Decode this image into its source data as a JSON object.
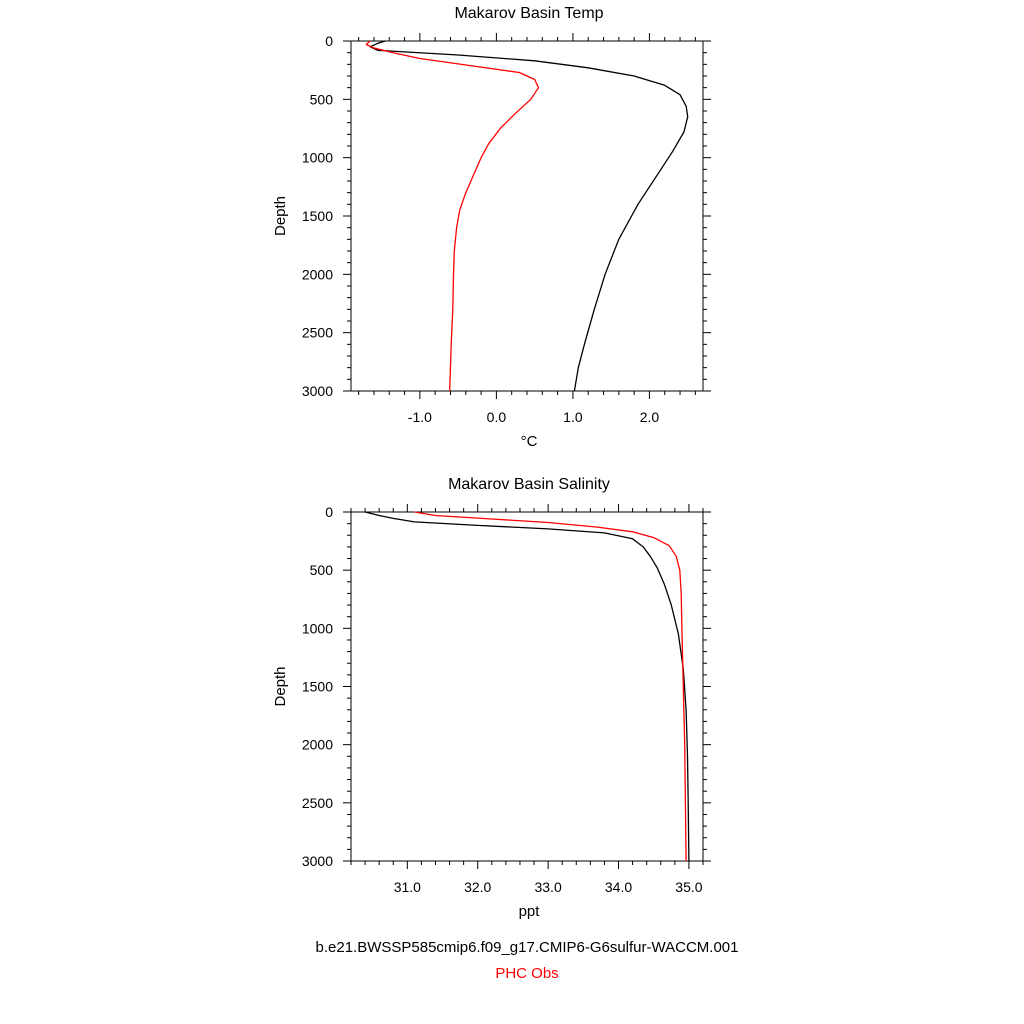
{
  "chart_data": [
    {
      "type": "line",
      "title": "Makarov Basin Temp",
      "xlabel": "°C",
      "ylabel": "Depth",
      "xlim": [
        -1.9,
        2.7
      ],
      "ylim": [
        3000,
        0
      ],
      "x_ticks": [
        -1.0,
        0.0,
        1.0,
        2.0
      ],
      "x_tick_labels": [
        "-1.0",
        "0.0",
        "1.0",
        "2.0"
      ],
      "y_ticks": [
        0,
        500,
        1000,
        1500,
        2000,
        2500,
        3000
      ],
      "y_tick_labels": [
        "0",
        "500",
        "1000",
        "1500",
        "2000",
        "2500",
        "3000"
      ],
      "grid": false,
      "series": [
        {
          "color": "#000000",
          "points": [
            [
              -1.45,
              0
            ],
            [
              -1.55,
              20
            ],
            [
              -1.65,
              50
            ],
            [
              -1.55,
              80
            ],
            [
              -0.5,
              120
            ],
            [
              0.5,
              170
            ],
            [
              1.2,
              230
            ],
            [
              1.8,
              300
            ],
            [
              2.2,
              380
            ],
            [
              2.4,
              460
            ],
            [
              2.48,
              560
            ],
            [
              2.5,
              650
            ],
            [
              2.45,
              780
            ],
            [
              2.3,
              950
            ],
            [
              2.1,
              1150
            ],
            [
              1.85,
              1400
            ],
            [
              1.6,
              1700
            ],
            [
              1.42,
              2000
            ],
            [
              1.28,
              2300
            ],
            [
              1.15,
              2600
            ],
            [
              1.07,
              2800
            ],
            [
              1.02,
              3000
            ]
          ]
        },
        {
          "color": "#ff0000",
          "points": [
            [
              -1.65,
              0
            ],
            [
              -1.7,
              30
            ],
            [
              -1.6,
              60
            ],
            [
              -1.35,
              100
            ],
            [
              -1.0,
              150
            ],
            [
              -0.35,
              210
            ],
            [
              0.3,
              270
            ],
            [
              0.5,
              330
            ],
            [
              0.55,
              400
            ],
            [
              0.45,
              500
            ],
            [
              0.25,
              620
            ],
            [
              0.05,
              750
            ],
            [
              -0.1,
              880
            ],
            [
              -0.2,
              1000
            ],
            [
              -0.3,
              1150
            ],
            [
              -0.4,
              1300
            ],
            [
              -0.48,
              1450
            ],
            [
              -0.52,
              1600
            ],
            [
              -0.55,
              1800
            ],
            [
              -0.56,
              2000
            ],
            [
              -0.57,
              2300
            ],
            [
              -0.59,
              2600
            ],
            [
              -0.61,
              3000
            ]
          ]
        }
      ]
    },
    {
      "type": "line",
      "title": "Makarov Basin Salinity",
      "xlabel": "ppt",
      "ylabel": "Depth",
      "xlim": [
        30.2,
        35.2
      ],
      "ylim": [
        3000,
        0
      ],
      "x_ticks": [
        31.0,
        32.0,
        33.0,
        34.0,
        35.0
      ],
      "x_tick_labels": [
        "31.0",
        "32.0",
        "33.0",
        "34.0",
        "35.0"
      ],
      "y_ticks": [
        0,
        500,
        1000,
        1500,
        2000,
        2500,
        3000
      ],
      "y_tick_labels": [
        "0",
        "500",
        "1000",
        "1500",
        "2000",
        "2500",
        "3000"
      ],
      "grid": false,
      "series": [
        {
          "color": "#000000",
          "points": [
            [
              30.4,
              0
            ],
            [
              30.6,
              30
            ],
            [
              30.8,
              55
            ],
            [
              31.1,
              85
            ],
            [
              32.0,
              115
            ],
            [
              33.0,
              145
            ],
            [
              33.8,
              180
            ],
            [
              34.2,
              230
            ],
            [
              34.35,
              300
            ],
            [
              34.45,
              380
            ],
            [
              34.55,
              480
            ],
            [
              34.65,
              620
            ],
            [
              34.75,
              800
            ],
            [
              34.85,
              1050
            ],
            [
              34.92,
              1350
            ],
            [
              34.96,
              1700
            ],
            [
              34.98,
              2100
            ],
            [
              34.99,
              2500
            ],
            [
              35.0,
              3000
            ]
          ]
        },
        {
          "color": "#ff0000",
          "points": [
            [
              31.1,
              0
            ],
            [
              31.4,
              30
            ],
            [
              32.2,
              60
            ],
            [
              33.0,
              90
            ],
            [
              33.7,
              130
            ],
            [
              34.2,
              170
            ],
            [
              34.5,
              220
            ],
            [
              34.72,
              290
            ],
            [
              34.82,
              380
            ],
            [
              34.87,
              500
            ],
            [
              34.89,
              700
            ],
            [
              34.9,
              1000
            ],
            [
              34.92,
              1500
            ],
            [
              34.94,
              2000
            ],
            [
              34.95,
              2500
            ],
            [
              34.96,
              3000
            ]
          ]
        }
      ]
    }
  ],
  "footer": {
    "case_name": "b.e21.BWSSP585cmip6.f09_g17.CMIP6-G6sulfur-WACCM.001",
    "obs_name": "PHC Obs",
    "obs_color": "#ff0000"
  }
}
